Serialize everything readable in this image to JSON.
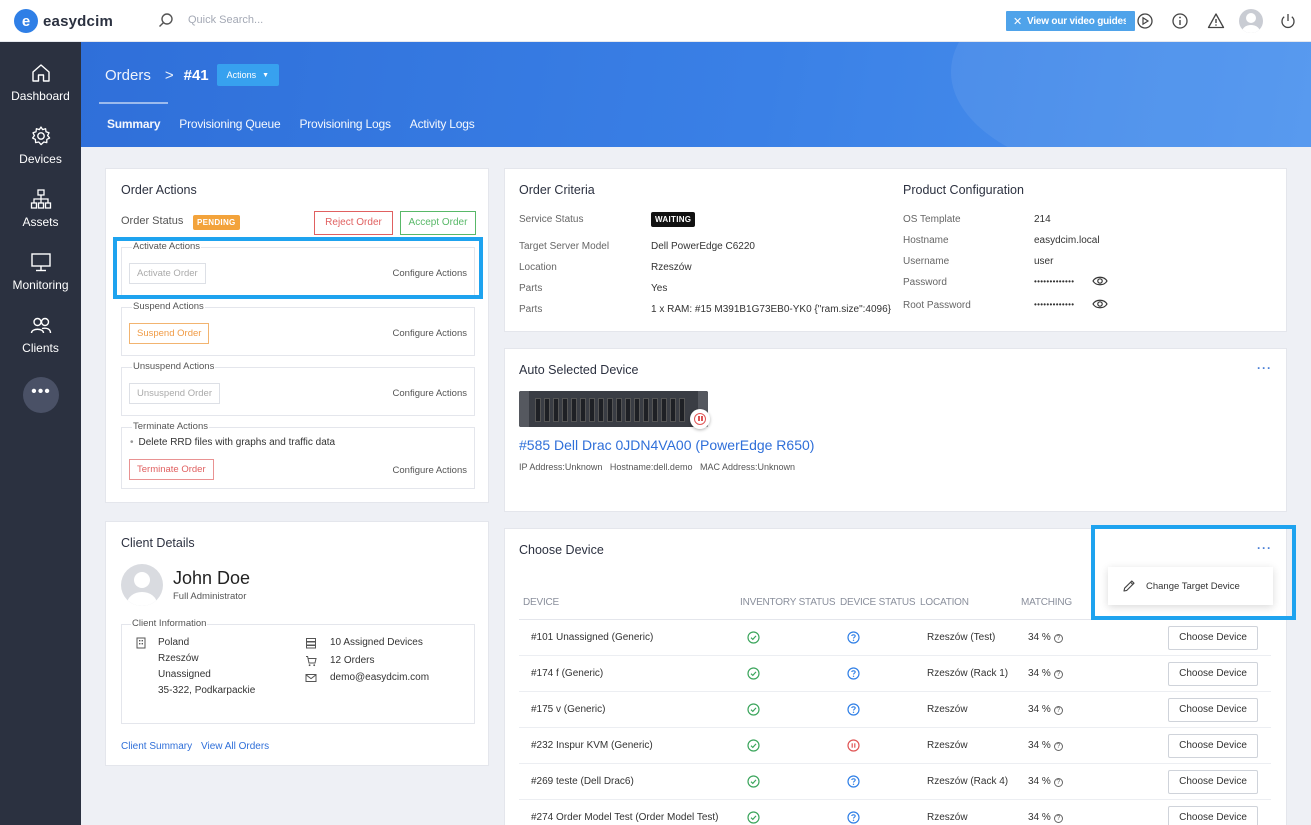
{
  "app": {
    "logo_letter": "e",
    "logo_text": "easydcim"
  },
  "topbar": {
    "search_placeholder": "Quick Search...",
    "guides_label": "View our video guides",
    "icons": [
      "play-circle-icon",
      "info-icon",
      "warning-icon",
      "user-avatar",
      "power-icon"
    ]
  },
  "sidebar": {
    "items": [
      {
        "label": "Dashboard",
        "icon": "home-icon"
      },
      {
        "label": "Devices",
        "icon": "gear-icon"
      },
      {
        "label": "Assets",
        "icon": "sitemap-icon"
      },
      {
        "label": "Monitoring",
        "icon": "monitor-icon"
      },
      {
        "label": "Clients",
        "icon": "users-icon"
      }
    ],
    "more_label": "•••"
  },
  "header": {
    "breadcrumb_root": "Orders",
    "breadcrumb_sep": ">",
    "breadcrumb_current": "#41",
    "actions_label": "Actions",
    "tabs": [
      "Summary",
      "Provisioning Queue",
      "Provisioning Logs",
      "Activity Logs"
    ],
    "active_tab": "Summary"
  },
  "order_actions": {
    "title": "Order Actions",
    "status_label": "Order Status",
    "status_badge": "PENDING",
    "reject_label": "Reject Order",
    "accept_label": "Accept Order",
    "configure_label": "Configure Actions",
    "groups": [
      {
        "title": "Activate Actions",
        "button": "Activate Order"
      },
      {
        "title": "Suspend Actions",
        "button": "Suspend Order"
      },
      {
        "title": "Unsuspend Actions",
        "button": "Unsuspend Order"
      },
      {
        "title": "Terminate Actions",
        "button": "Terminate Order",
        "note": "Delete RRD files with graphs and traffic data"
      }
    ]
  },
  "order_criteria": {
    "title": "Order Criteria",
    "rows": [
      {
        "label": "Service Status",
        "value": "WAITING"
      },
      {
        "label": "Target Server Model",
        "value": "Dell PowerEdge C6220"
      },
      {
        "label": "Location",
        "value": "Rzeszów"
      },
      {
        "label": "Parts",
        "value": "Yes"
      },
      {
        "label": "Parts",
        "value": "1 x RAM: #15 M391B1G73EB0-YK0 {\"ram.size\":4096}"
      }
    ]
  },
  "product_config": {
    "title": "Product Configuration",
    "rows": [
      {
        "label": "OS Template",
        "value": "214"
      },
      {
        "label": "Hostname",
        "value": "easydcim.local"
      },
      {
        "label": "Username",
        "value": "user"
      },
      {
        "label": "Password",
        "value": "•••••••••••••"
      },
      {
        "label": "Root Password",
        "value": "•••••••••••••"
      }
    ]
  },
  "auto_device": {
    "title": "Auto Selected Device",
    "menu": "···",
    "name": "#585 Dell Drac 0JDN4VA00 (PowerEdge R650)",
    "ip": "IP Address:Unknown",
    "hostname": "Hostname:dell.demo",
    "mac": "MAC Address:Unknown"
  },
  "choose_device": {
    "title": "Choose Device",
    "menu": "···",
    "dropdown_item": "Change Target Device",
    "columns": [
      "DEVICE",
      "INVENTORY STATUS",
      "DEVICE STATUS",
      "LOCATION",
      "MATCHING"
    ],
    "button_label": "Choose Device",
    "rows": [
      {
        "device": "#101 Unassigned (Generic)",
        "device_status": "unknown",
        "location": "Rzeszów (Test)",
        "matching": "34 %"
      },
      {
        "device": "#174 f (Generic)",
        "device_status": "unknown",
        "location": "Rzeszów (Rack 1)",
        "matching": "34 %"
      },
      {
        "device": "#175 v (Generic)",
        "device_status": "unknown",
        "location": "Rzeszów",
        "matching": "34 %"
      },
      {
        "device": "#232 Inspur KVM (Generic)",
        "device_status": "stopped",
        "location": "Rzeszów",
        "matching": "34 %"
      },
      {
        "device": "#269 teste (Dell Drac6)",
        "device_status": "unknown",
        "location": "Rzeszów (Rack 4)",
        "matching": "34 %"
      },
      {
        "device": "#274 Order Model Test (Order Model Test)",
        "device_status": "unknown",
        "location": "Rzeszów",
        "matching": "34 %"
      }
    ]
  },
  "client": {
    "title": "Client Details",
    "name": "John Doe",
    "role": "Full Administrator",
    "info_title": "Client Information",
    "address": [
      "Poland",
      "Rzeszów",
      "Unassigned",
      "35-322, Podkarpackie"
    ],
    "assigned_devices": "10 Assigned Devices",
    "orders": "12 Orders",
    "email": "demo@easydcim.com",
    "link_summary": "Client Summary",
    "link_orders": "View All Orders"
  },
  "colors": {
    "brand_blue": "#2f6fd9",
    "highlight": "#1ea3ef",
    "pending": "#f3a33b",
    "success": "#58b868",
    "danger": "#e06060"
  }
}
